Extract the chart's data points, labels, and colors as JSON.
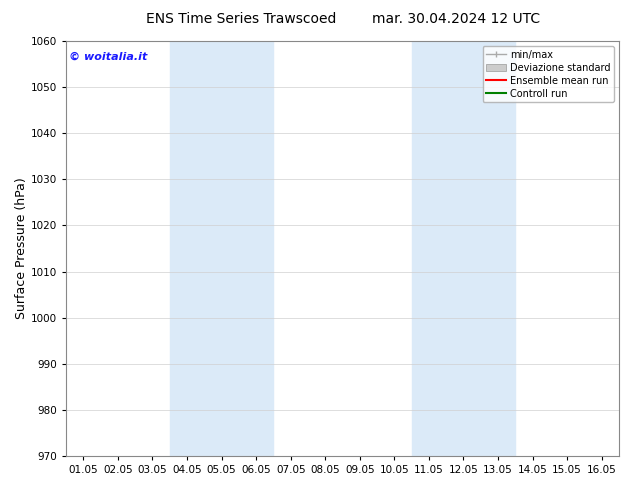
{
  "title_left": "ENS Time Series Trawscoed",
  "title_right": "mar. 30.04.2024 12 UTC",
  "ylabel": "Surface Pressure (hPa)",
  "ylim": [
    970,
    1060
  ],
  "yticks": [
    970,
    980,
    990,
    1000,
    1010,
    1020,
    1030,
    1040,
    1050,
    1060
  ],
  "xtick_labels": [
    "01.05",
    "02.05",
    "03.05",
    "04.05",
    "05.05",
    "06.05",
    "07.05",
    "08.05",
    "09.05",
    "10.05",
    "11.05",
    "12.05",
    "13.05",
    "14.05",
    "15.05",
    "16.05"
  ],
  "shaded_bands": [
    {
      "xstart": 3,
      "xend": 5
    },
    {
      "xstart": 10,
      "xend": 12
    }
  ],
  "shade_color": "#dbeaf8",
  "watermark": "© woitalia.it",
  "watermark_color": "#1a1aff",
  "legend_items": [
    {
      "label": "min/max",
      "color": "#aaaaaa",
      "type": "minmax"
    },
    {
      "label": "Deviazione standard",
      "color": "#cccccc",
      "type": "fill"
    },
    {
      "label": "Ensemble mean run",
      "color": "#ff0000",
      "type": "line"
    },
    {
      "label": "Controll run",
      "color": "#008000",
      "type": "line"
    }
  ],
  "background_color": "#ffffff",
  "title_fontsize": 10,
  "axis_label_fontsize": 9,
  "tick_fontsize": 7.5,
  "legend_fontsize": 7,
  "watermark_fontsize": 8
}
